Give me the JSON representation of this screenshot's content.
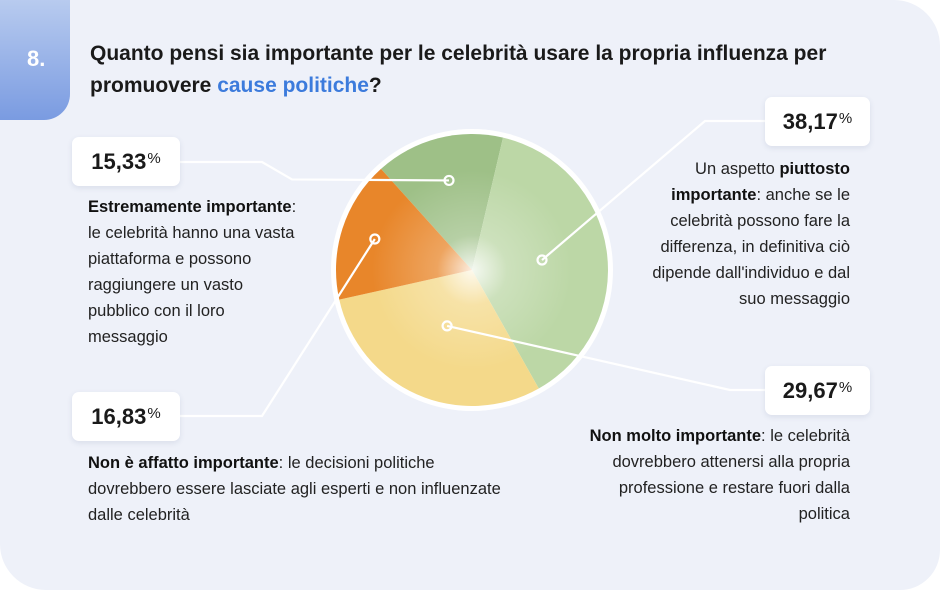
{
  "question": {
    "number": "8.",
    "text_before": "Quanto pensi sia importante per le celebrità usare la propria influenza per promuovere ",
    "highlight": "cause politiche",
    "text_after": "?"
  },
  "labels": {
    "estremamente": {
      "percent": "15,33",
      "percent_sign": "%",
      "bold": "Estremamente importante",
      "rest": ": le celebrità hanno una vasta piattaforma e possono raggiungere un vasto pubblico con il loro messaggio"
    },
    "piuttosto": {
      "percent": "38,17",
      "percent_sign": "%",
      "pre": "Un aspetto ",
      "bold": "piuttosto importante",
      "rest": ": anche se le celebrità possono fare la differenza, in definitiva ciò dipende dall'individuo e dal suo messaggio"
    },
    "non_molto": {
      "percent": "29,67",
      "percent_sign": "%",
      "bold": "Non molto importante",
      "rest": ": le celebrità dovrebbero attenersi alla propria professione e restare fuori dalla politica"
    },
    "non_affatto": {
      "percent": "16,83",
      "percent_sign": "%",
      "bold": "Non è affatto importante",
      "rest": ": le decisioni politiche dovrebbero essere lasciate agli esperti e non influenzate dalle celebrità"
    }
  },
  "colors": {
    "accent": "#3c7bdc",
    "badge": "#7a9be1"
  },
  "chart_data": {
    "type": "pie",
    "series": [
      {
        "values": [
          15.33,
          38.17,
          29.67,
          16.83
        ],
        "colors": [
          "#9ec087",
          "#bcd7a6",
          "#f4d98a",
          "#e8862a"
        ]
      }
    ]
  }
}
